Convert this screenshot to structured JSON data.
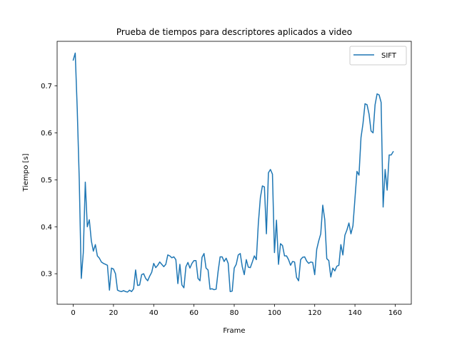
{
  "chart_data": {
    "type": "line",
    "title": "Prueba de tiempos para descriptores aplicados a video",
    "xlabel": "Frame",
    "ylabel": "Tiempo [s]",
    "xlim": [
      -8,
      168
    ],
    "ylim": [
      0.235,
      0.795
    ],
    "xticks": [
      0,
      20,
      40,
      60,
      80,
      100,
      120,
      140,
      160
    ],
    "yticks": [
      0.3,
      0.4,
      0.5,
      0.6,
      0.7
    ],
    "ytick_labels": [
      "0.3",
      "0.4",
      "0.5",
      "0.6",
      "0.7"
    ],
    "grid": false,
    "legend_position": "top-right",
    "series": [
      {
        "name": "SIFT",
        "color": "#1f77b4",
        "y": [
          0.755,
          0.77,
          0.65,
          0.5,
          0.29,
          0.345,
          0.495,
          0.4,
          0.415,
          0.37,
          0.348,
          0.362,
          0.338,
          0.333,
          0.325,
          0.322,
          0.32,
          0.318,
          0.265,
          0.312,
          0.31,
          0.3,
          0.265,
          0.263,
          0.262,
          0.264,
          0.262,
          0.261,
          0.265,
          0.262,
          0.268,
          0.308,
          0.275,
          0.276,
          0.298,
          0.3,
          0.29,
          0.285,
          0.295,
          0.303,
          0.322,
          0.313,
          0.318,
          0.325,
          0.32,
          0.315,
          0.32,
          0.34,
          0.338,
          0.334,
          0.336,
          0.33,
          0.279,
          0.32,
          0.276,
          0.27,
          0.315,
          0.324,
          0.312,
          0.322,
          0.328,
          0.328,
          0.29,
          0.285,
          0.335,
          0.343,
          0.312,
          0.308,
          0.267,
          0.268,
          0.266,
          0.267,
          0.305,
          0.336,
          0.336,
          0.326,
          0.333,
          0.322,
          0.262,
          0.263,
          0.312,
          0.32,
          0.34,
          0.343,
          0.315,
          0.298,
          0.33,
          0.314,
          0.313,
          0.325,
          0.338,
          0.33,
          0.408,
          0.462,
          0.487,
          0.485,
          0.385,
          0.515,
          0.522,
          0.512,
          0.345,
          0.414,
          0.32,
          0.364,
          0.36,
          0.338,
          0.338,
          0.33,
          0.318,
          0.326,
          0.325,
          0.292,
          0.285,
          0.33,
          0.335,
          0.336,
          0.327,
          0.322,
          0.325,
          0.324,
          0.298,
          0.352,
          0.37,
          0.385,
          0.446,
          0.415,
          0.332,
          0.328,
          0.293,
          0.312,
          0.306,
          0.316,
          0.318,
          0.362,
          0.34,
          0.382,
          0.393,
          0.408,
          0.385,
          0.402,
          0.46,
          0.518,
          0.51,
          0.59,
          0.62,
          0.662,
          0.66,
          0.64,
          0.604,
          0.6,
          0.66,
          0.683,
          0.681,
          0.665,
          0.442,
          0.522,
          0.478,
          0.553,
          0.553,
          0.56
        ]
      }
    ]
  }
}
